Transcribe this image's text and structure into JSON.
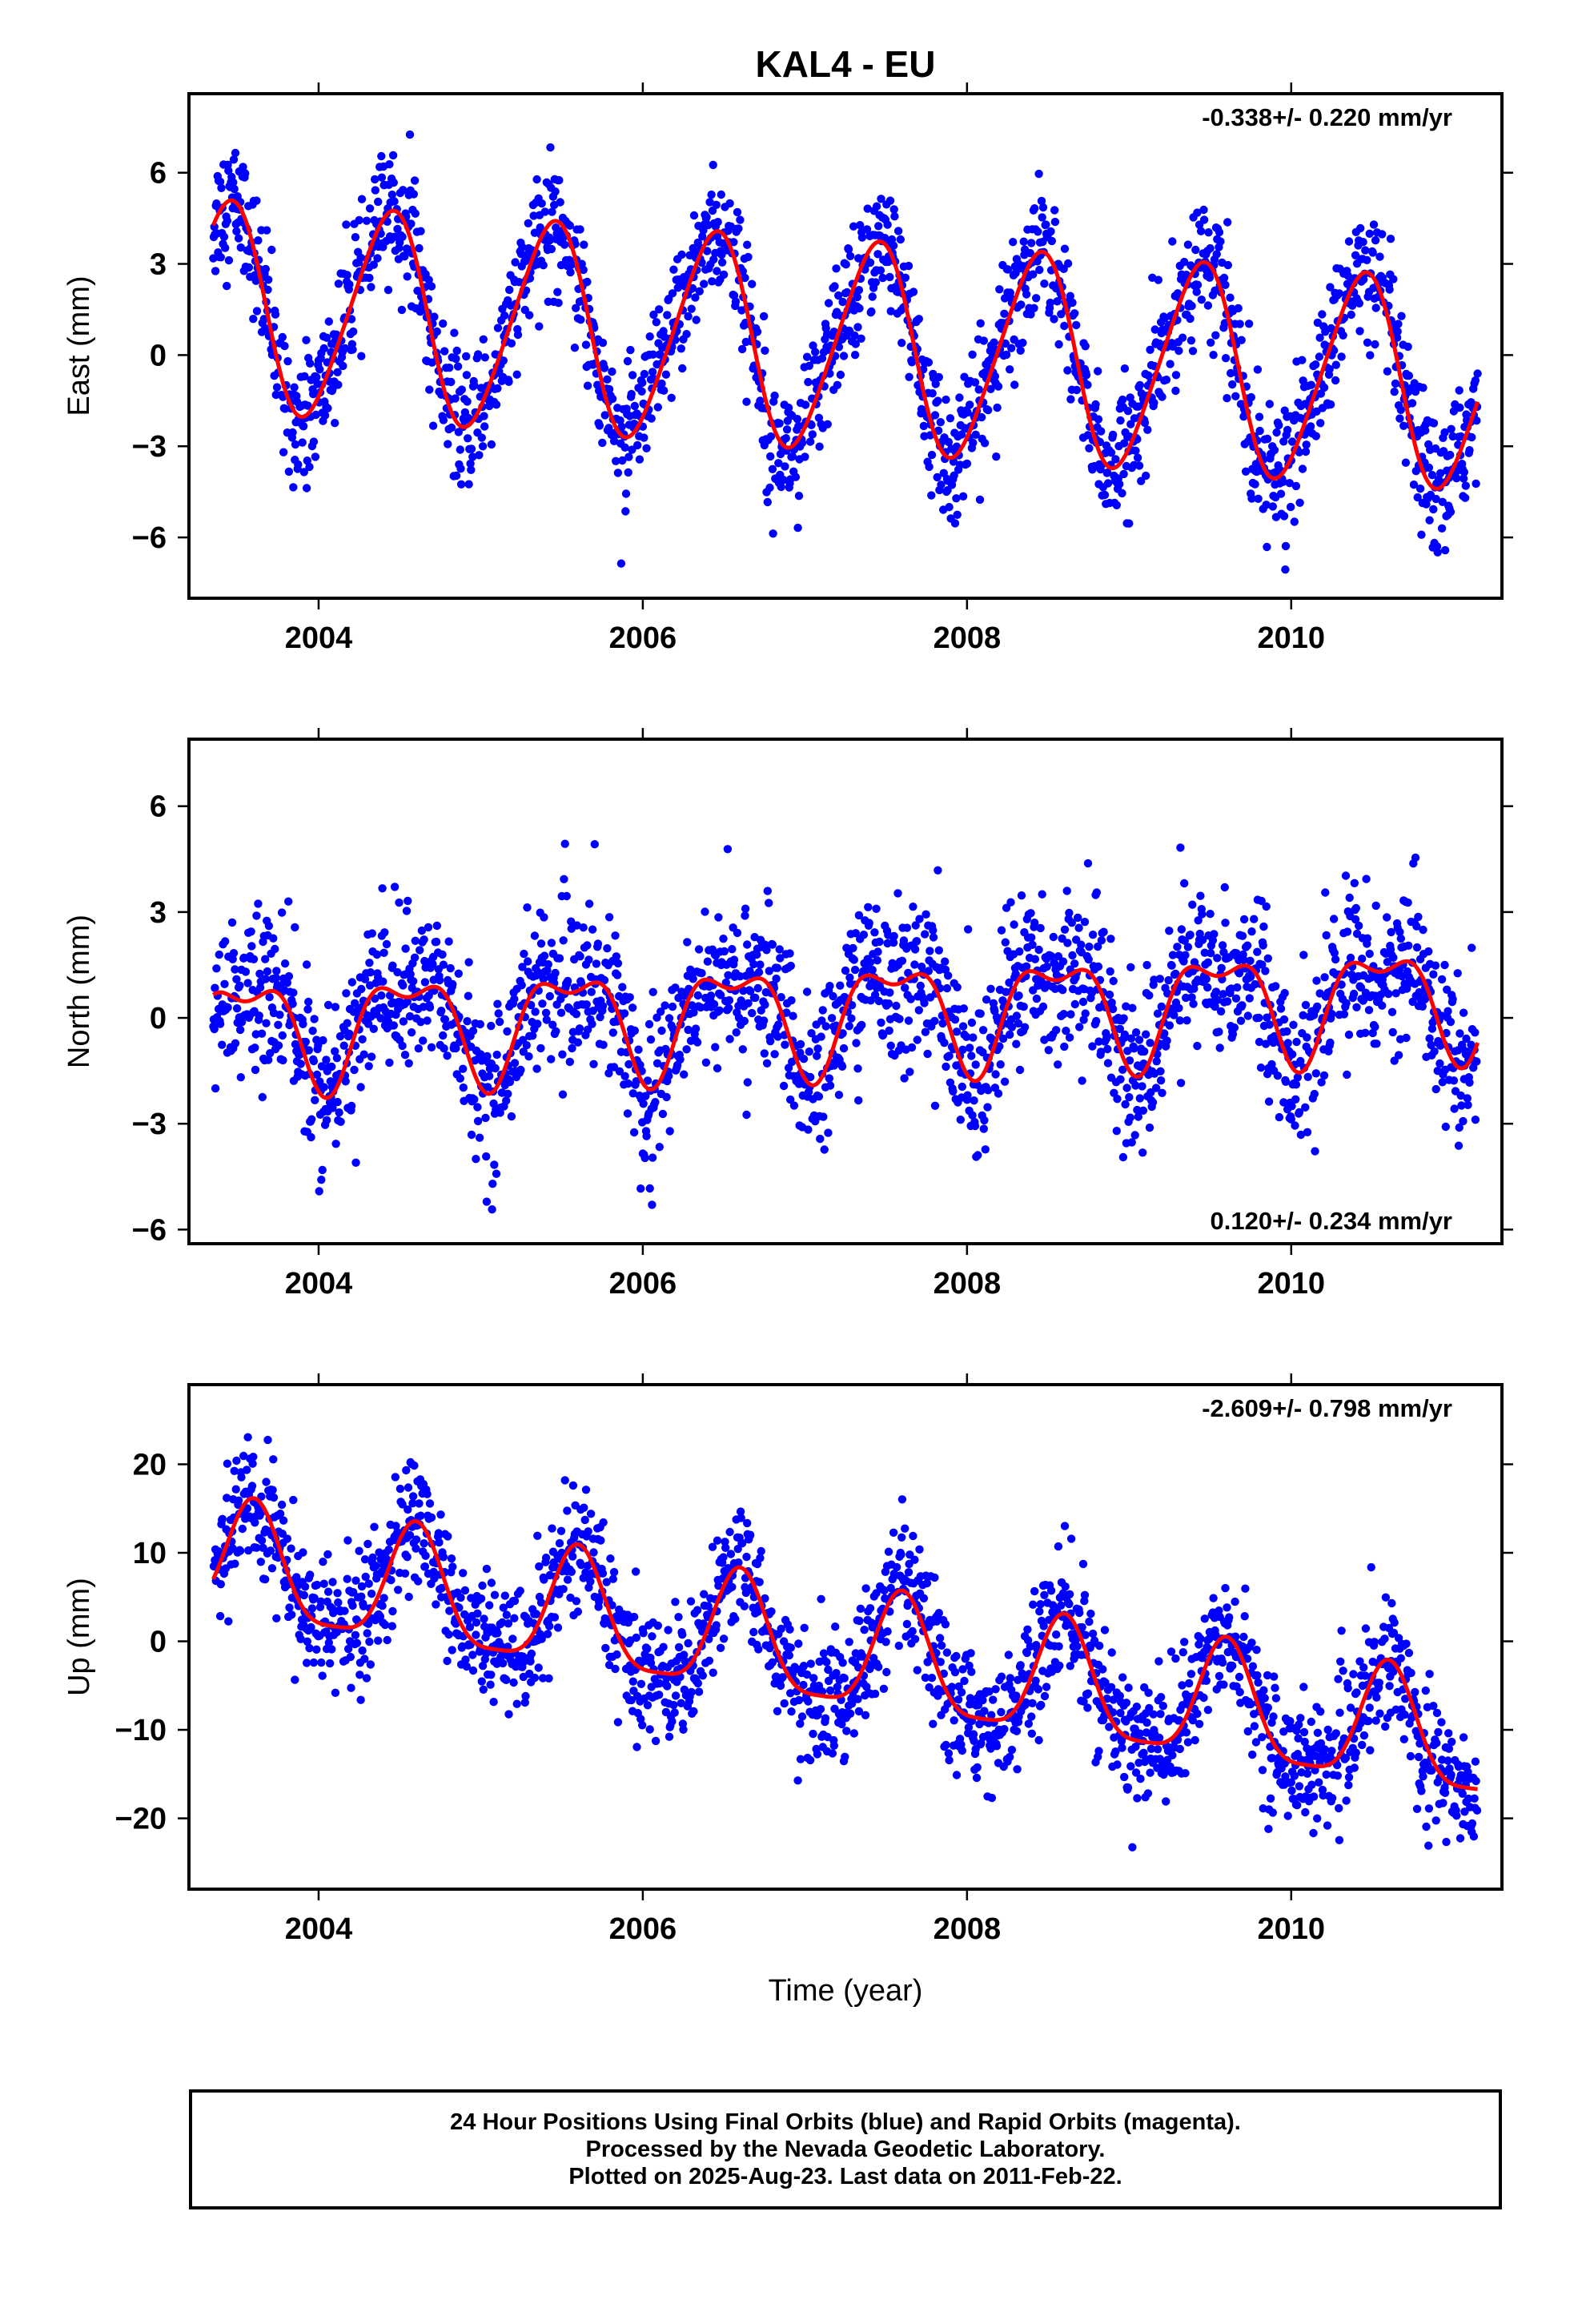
{
  "title": "KAL4 - EU",
  "xlabel": "Time (year)",
  "colors": {
    "points": "#0000ff",
    "fit": "#ff0000",
    "frame": "#000000"
  },
  "chart_data": [
    {
      "type": "scatter",
      "name": "east",
      "ylabel": "East (mm)",
      "rate_text": "-0.338+/- 0.220 mm/yr",
      "rate_position": "top-right",
      "xlim": [
        2003.2,
        2011.3
      ],
      "ylim": [
        -8,
        8.6
      ],
      "xticks": [
        2004,
        2006,
        2008,
        2010
      ],
      "xtick_labels": [
        "2004",
        "2006",
        "2008",
        "2010"
      ],
      "yticks": [
        -6,
        -3,
        0,
        3,
        6
      ],
      "ytick_labels": [
        "−6",
        "−3",
        "0",
        "3",
        "6"
      ],
      "fit": {
        "offset": 1.6,
        "rate": -0.338,
        "amp": 3.4,
        "peak_phase": 0.43,
        "semi": 0.4,
        "semi_phase": 0.05
      },
      "scatter_sd": 1.05,
      "time_span": [
        2003.35,
        2011.15
      ]
    },
    {
      "type": "scatter",
      "name": "north",
      "ylabel": "North (mm)",
      "rate_text": "0.120+/- 0.234 mm/yr",
      "rate_position": "bottom-right",
      "xlim": [
        2003.2,
        2011.3
      ],
      "ylim": [
        -6.4,
        7.9
      ],
      "xticks": [
        2004,
        2006,
        2008,
        2010
      ],
      "xtick_labels": [
        "2004",
        "2006",
        "2008",
        "2010"
      ],
      "yticks": [
        -6,
        -3,
        0,
        3,
        6
      ],
      "ytick_labels": [
        "−6",
        "−3",
        "0",
        "3",
        "6"
      ],
      "fit": {
        "offset": -0.3,
        "rate": 0.12,
        "amp": 1.4,
        "peak_phase": 0.55,
        "semi": 0.65,
        "semi_phase": 0.3
      },
      "scatter_sd": 1.1,
      "time_span": [
        2003.35,
        2011.15
      ]
    },
    {
      "type": "scatter",
      "name": "up",
      "ylabel": "Up (mm)",
      "rate_text": "-2.609+/- 0.798 mm/yr",
      "rate_position": "top-right",
      "xlim": [
        2003.2,
        2011.3
      ],
      "ylim": [
        -28,
        29
      ],
      "xticks": [
        2004,
        2006,
        2008,
        2010
      ],
      "xtick_labels": [
        "2004",
        "2006",
        "2008",
        "2010"
      ],
      "yticks": [
        -20,
        -10,
        0,
        10,
        20
      ],
      "ytick_labels": [
        "−20",
        "−10",
        "0",
        "10",
        "20"
      ],
      "fit": {
        "offset": 8.5,
        "rate": -2.609,
        "amp": 6.6,
        "peak_phase": 0.6,
        "semi": 1.6,
        "semi_phase": 0.1
      },
      "scatter_sd": 3.6,
      "time_span": [
        2003.35,
        2011.15
      ]
    }
  ],
  "footer": {
    "line1": "24 Hour Positions Using Final Orbits (blue) and Rapid Orbits (magenta).",
    "line2": "Processed by the Nevada Geodetic Laboratory.",
    "line3": "Plotted on 2025-Aug-23. Last data on 2011-Feb-22."
  }
}
